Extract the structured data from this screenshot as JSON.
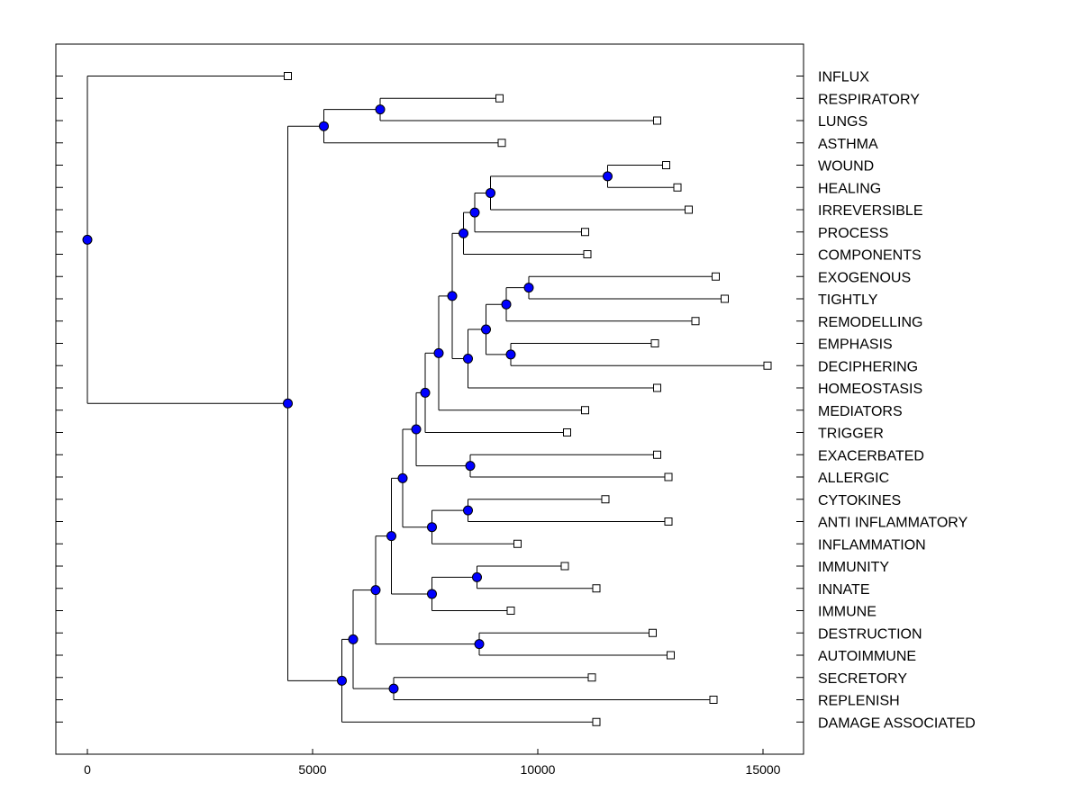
{
  "chart_data": {
    "type": "dendrogram",
    "title": "",
    "xlabel": "",
    "ylabel": "",
    "xlim": [
      -700,
      15900
    ],
    "xticks": [
      {
        "value": 0,
        "label": "0"
      },
      {
        "value": 5000,
        "label": "5000"
      },
      {
        "value": 10000,
        "label": "10000"
      },
      {
        "value": 15000,
        "label": "15000"
      }
    ],
    "leaves": [
      {
        "id": "L0",
        "label": "INFLUX",
        "x": 4450
      },
      {
        "id": "L1",
        "label": "RESPIRATORY",
        "x": 9150
      },
      {
        "id": "L2",
        "label": "LUNGS",
        "x": 12650
      },
      {
        "id": "L3",
        "label": "ASTHMA",
        "x": 9200
      },
      {
        "id": "L4",
        "label": "WOUND",
        "x": 12850
      },
      {
        "id": "L5",
        "label": "HEALING",
        "x": 13100
      },
      {
        "id": "L6",
        "label": "IRREVERSIBLE",
        "x": 13350
      },
      {
        "id": "L7",
        "label": "PROCESS",
        "x": 11050
      },
      {
        "id": "L8",
        "label": "COMPONENTS",
        "x": 11100
      },
      {
        "id": "L9",
        "label": "EXOGENOUS",
        "x": 13950
      },
      {
        "id": "L10",
        "label": "TIGHTLY",
        "x": 14150
      },
      {
        "id": "L11",
        "label": "REMODELLING",
        "x": 13500
      },
      {
        "id": "L12",
        "label": "EMPHASIS",
        "x": 12600
      },
      {
        "id": "L13",
        "label": "DECIPHERING",
        "x": 15100
      },
      {
        "id": "L14",
        "label": "HOMEOSTASIS",
        "x": 12650
      },
      {
        "id": "L15",
        "label": "MEDIATORS",
        "x": 11050
      },
      {
        "id": "L16",
        "label": "TRIGGER",
        "x": 10650
      },
      {
        "id": "L17",
        "label": "EXACERBATED",
        "x": 12650
      },
      {
        "id": "L18",
        "label": "ALLERGIC",
        "x": 12900
      },
      {
        "id": "L19",
        "label": "CYTOKINES",
        "x": 11500
      },
      {
        "id": "L20",
        "label": "ANTI INFLAMMATORY",
        "x": 12900
      },
      {
        "id": "L21",
        "label": "INFLAMMATION",
        "x": 9550
      },
      {
        "id": "L22",
        "label": "IMMUNITY",
        "x": 10600
      },
      {
        "id": "L23",
        "label": "INNATE",
        "x": 11300
      },
      {
        "id": "L24",
        "label": "IMMUNE",
        "x": 9400
      },
      {
        "id": "L25",
        "label": "DESTRUCTION",
        "x": 12550
      },
      {
        "id": "L26",
        "label": "AUTOIMMUNE",
        "x": 12950
      },
      {
        "id": "L27",
        "label": "SECRETORY",
        "x": 11200
      },
      {
        "id": "L28",
        "label": "REPLENISH",
        "x": 13900
      },
      {
        "id": "L29",
        "label": "DAMAGE ASSOCIATED",
        "x": 11300
      }
    ],
    "nodes": [
      {
        "id": "N_root",
        "x": 0,
        "children": [
          "L0",
          "N_b"
        ]
      },
      {
        "id": "N_resp",
        "x": 6500,
        "children": [
          "L1",
          "L2"
        ]
      },
      {
        "id": "N_a",
        "x": 5250,
        "children": [
          "N_resp",
          "L3"
        ]
      },
      {
        "id": "N_wh",
        "x": 11550,
        "children": [
          "L4",
          "L5"
        ]
      },
      {
        "id": "N_whi",
        "x": 8950,
        "children": [
          "N_wh",
          "L6"
        ]
      },
      {
        "id": "N_whip",
        "x": 8600,
        "children": [
          "N_whi",
          "L7"
        ]
      },
      {
        "id": "N_whipc",
        "x": 8350,
        "children": [
          "N_whip",
          "L8"
        ]
      },
      {
        "id": "N_et",
        "x": 9800,
        "children": [
          "L9",
          "L10"
        ]
      },
      {
        "id": "N_etr",
        "x": 9300,
        "children": [
          "N_et",
          "L11"
        ]
      },
      {
        "id": "N_ed",
        "x": 9400,
        "children": [
          "L12",
          "L13"
        ]
      },
      {
        "id": "N_etred",
        "x": 8850,
        "children": [
          "N_etr",
          "N_ed"
        ]
      },
      {
        "id": "N_hom",
        "x": 8450,
        "children": [
          "N_etred",
          "L14"
        ]
      },
      {
        "id": "N_big",
        "x": 8100,
        "children": [
          "N_whipc",
          "N_hom"
        ]
      },
      {
        "id": "N_med",
        "x": 7800,
        "children": [
          "N_big",
          "L15"
        ]
      },
      {
        "id": "N_trig",
        "x": 7500,
        "children": [
          "N_med",
          "L16"
        ]
      },
      {
        "id": "N_ea",
        "x": 8500,
        "children": [
          "L17",
          "L18"
        ]
      },
      {
        "id": "N_trigea",
        "x": 7300,
        "children": [
          "N_trig",
          "N_ea"
        ]
      },
      {
        "id": "N_ca",
        "x": 8450,
        "children": [
          "L19",
          "L20"
        ]
      },
      {
        "id": "N_cai",
        "x": 7650,
        "children": [
          "N_ca",
          "L21"
        ]
      },
      {
        "id": "N_m2",
        "x": 7000,
        "children": [
          "N_trigea",
          "N_cai"
        ]
      },
      {
        "id": "N_ii",
        "x": 8650,
        "children": [
          "L22",
          "L23"
        ]
      },
      {
        "id": "N_iii",
        "x": 7650,
        "children": [
          "N_ii",
          "L24"
        ]
      },
      {
        "id": "N_m3",
        "x": 6750,
        "children": [
          "N_m2",
          "N_iii"
        ]
      },
      {
        "id": "N_da",
        "x": 8700,
        "children": [
          "L25",
          "L26"
        ]
      },
      {
        "id": "N_m4",
        "x": 6400,
        "children": [
          "N_m3",
          "N_da"
        ]
      },
      {
        "id": "N_sr",
        "x": 6800,
        "children": [
          "L27",
          "L28"
        ]
      },
      {
        "id": "N_m5",
        "x": 5900,
        "children": [
          "N_m4",
          "N_sr"
        ]
      },
      {
        "id": "N_m6",
        "x": 5650,
        "children": [
          "N_m5",
          "L29"
        ]
      },
      {
        "id": "N_b",
        "x": 4450,
        "children": [
          "N_a",
          "N_m6"
        ]
      }
    ]
  }
}
